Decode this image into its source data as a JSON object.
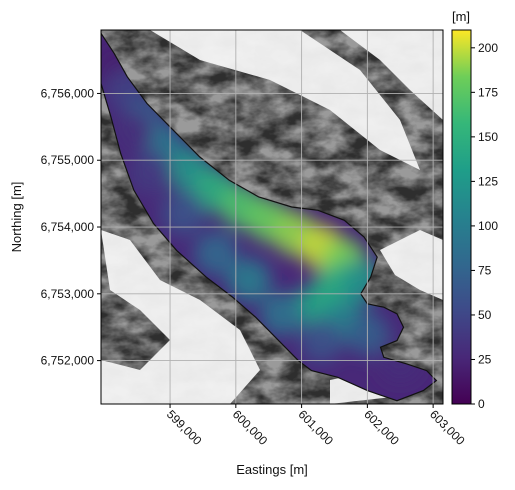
{
  "chart_data": {
    "type": "heatmap",
    "title": "",
    "xlabel": "Eastings [m]",
    "ylabel": "Northing [m]",
    "xlim": [
      597950,
      603150
    ],
    "ylim": [
      6751350,
      6756950
    ],
    "x_ticks": [
      599000,
      600000,
      601000,
      602000,
      603000
    ],
    "x_tick_labels": [
      "599,000",
      "600,000",
      "601,000",
      "602,000",
      "603,000"
    ],
    "y_ticks": [
      6752000,
      6753000,
      6754000,
      6755000,
      6756000
    ],
    "y_tick_labels": [
      "6,752,000",
      "6,753,000",
      "6,754,000",
      "6,755,000",
      "6,756,000"
    ],
    "grid": true,
    "background": "grayscale hillshade",
    "colormap": "viridis",
    "colorbar": {
      "label": "[m]",
      "range": [
        0,
        210
      ],
      "ticks": [
        0,
        25,
        50,
        75,
        100,
        125,
        150,
        175,
        200
      ],
      "tick_labels": [
        "0",
        "25",
        "50",
        "75",
        "100",
        "125",
        "150",
        "175",
        "200"
      ]
    },
    "outline": [
      [
        597950,
        6756900
      ],
      [
        598150,
        6756600
      ],
      [
        598350,
        6756250
      ],
      [
        598650,
        6755850
      ],
      [
        599050,
        6755450
      ],
      [
        599450,
        6755050
      ],
      [
        599900,
        6754700
      ],
      [
        600350,
        6754450
      ],
      [
        600850,
        6754300
      ],
      [
        601250,
        6754250
      ],
      [
        601650,
        6754100
      ],
      [
        601950,
        6753850
      ],
      [
        602150,
        6753550
      ],
      [
        602050,
        6753250
      ],
      [
        601900,
        6753000
      ],
      [
        602000,
        6752850
      ],
      [
        602250,
        6752800
      ],
      [
        602450,
        6752700
      ],
      [
        602550,
        6752500
      ],
      [
        602450,
        6752300
      ],
      [
        602200,
        6752200
      ],
      [
        602250,
        6752050
      ],
      [
        602600,
        6751950
      ],
      [
        602900,
        6751850
      ],
      [
        603050,
        6751700
      ],
      [
        602850,
        6751550
      ],
      [
        602450,
        6751400
      ],
      [
        602000,
        6751550
      ],
      [
        601550,
        6751750
      ],
      [
        601150,
        6751850
      ],
      [
        600950,
        6752000
      ],
      [
        600600,
        6752350
      ],
      [
        600300,
        6752650
      ],
      [
        599950,
        6752950
      ],
      [
        599550,
        6753250
      ],
      [
        599100,
        6753650
      ],
      [
        598750,
        6754050
      ],
      [
        598450,
        6754550
      ],
      [
        598250,
        6755100
      ],
      [
        598100,
        6755650
      ],
      [
        597950,
        6756150
      ]
    ],
    "thickness_samples": [
      {
        "x": 598150,
        "y": 6756450,
        "v": 20
      },
      {
        "x": 598350,
        "y": 6756050,
        "v": 45
      },
      {
        "x": 598600,
        "y": 6755600,
        "v": 70
      },
      {
        "x": 598900,
        "y": 6755200,
        "v": 95
      },
      {
        "x": 599300,
        "y": 6754850,
        "v": 125
      },
      {
        "x": 599700,
        "y": 6754550,
        "v": 150
      },
      {
        "x": 600100,
        "y": 6754300,
        "v": 170
      },
      {
        "x": 600500,
        "y": 6754100,
        "v": 180
      },
      {
        "x": 600900,
        "y": 6753900,
        "v": 190
      },
      {
        "x": 601300,
        "y": 6753700,
        "v": 200
      },
      {
        "x": 601650,
        "y": 6753500,
        "v": 185
      },
      {
        "x": 601500,
        "y": 6753100,
        "v": 150
      },
      {
        "x": 601900,
        "y": 6753200,
        "v": 120
      },
      {
        "x": 601200,
        "y": 6752800,
        "v": 140
      },
      {
        "x": 601650,
        "y": 6752600,
        "v": 110
      },
      {
        "x": 602000,
        "y": 6752400,
        "v": 70
      },
      {
        "x": 601300,
        "y": 6752300,
        "v": 60
      },
      {
        "x": 602500,
        "y": 6752000,
        "v": 30
      },
      {
        "x": 600700,
        "y": 6752700,
        "v": 90
      },
      {
        "x": 600200,
        "y": 6753200,
        "v": 100
      },
      {
        "x": 599700,
        "y": 6753600,
        "v": 80
      },
      {
        "x": 599200,
        "y": 6754200,
        "v": 60
      },
      {
        "x": 598700,
        "y": 6754800,
        "v": 40
      },
      {
        "x": 598400,
        "y": 6755400,
        "v": 30
      }
    ]
  }
}
